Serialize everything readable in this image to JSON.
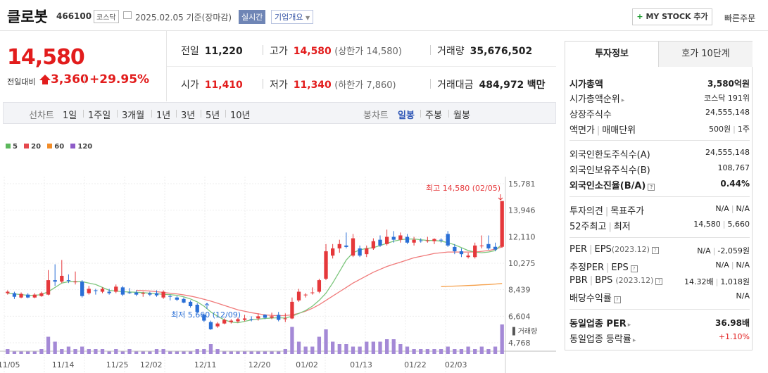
{
  "header": {
    "title": "클로봇",
    "code": "466100",
    "market": "코스닥",
    "date": "2025.02.05",
    "basis": "기준(장마감)",
    "realtime_label": "실시간",
    "company_label": "기업개요",
    "mystock_label": "MY STOCK 추가",
    "quick_order_label": "빠른주문"
  },
  "quote": {
    "price": "14,580",
    "prev_label": "전일대비",
    "change": "3,360",
    "change_pct": "+29.95%",
    "prev_close_label": "전일",
    "prev_close": "11,220",
    "high_label": "고가",
    "high": "14,580",
    "upper_limit_label": "(상한가 14,580)",
    "volume_label": "거래량",
    "volume": "35,676,502",
    "open_label": "시가",
    "open": "11,410",
    "low_label": "저가",
    "low": "11,340",
    "lower_limit_label": "(하한가 7,860)",
    "amount_label": "거래대금",
    "amount": "484,972",
    "amount_unit": "백만"
  },
  "chart_tabs": {
    "line_label": "선차트",
    "line_items": [
      "1일",
      "1주일",
      "3개월",
      "1년",
      "3년",
      "5년",
      "10년"
    ],
    "candle_label": "봉차트",
    "candle_items": [
      "일봉",
      "주봉",
      "월봉"
    ],
    "candle_active": "일봉"
  },
  "chart_data": {
    "type": "candlestick",
    "legend": [
      {
        "name": "5",
        "color": "#5cb85c"
      },
      {
        "name": "20",
        "color": "#e5484d"
      },
      {
        "name": "60",
        "color": "#f28c28"
      },
      {
        "name": "120",
        "color": "#8e5cc8"
      }
    ],
    "y_ticks": [
      15781,
      13946,
      12110,
      10275,
      8439,
      6604,
      4768
    ],
    "y_tick_labels": [
      "15,781",
      "13,946",
      "12,110",
      "10,275",
      "8,439",
      "6,604",
      "4,768"
    ],
    "x_ticks": [
      "11/05",
      "11/14",
      "11/25",
      "12/02",
      "12/11",
      "12/20",
      "01/02",
      "01/13",
      "01/22",
      "02/03"
    ],
    "volume_label": "거래량",
    "high_annotation": "최고 14,580 (02/05)",
    "low_annotation": "최저 5,660 (12/09)",
    "ylim": [
      4768,
      15781
    ],
    "candles": [
      {
        "o": 8200,
        "c": 8300,
        "h": 8400,
        "l": 8100
      },
      {
        "o": 8200,
        "c": 7950,
        "h": 8300,
        "l": 7800
      },
      {
        "o": 7900,
        "c": 8150,
        "h": 8250,
        "l": 7850
      },
      {
        "o": 8100,
        "c": 7900,
        "h": 8200,
        "l": 7850
      },
      {
        "o": 7900,
        "c": 8100,
        "h": 8200,
        "l": 7850
      },
      {
        "o": 8000,
        "c": 8200,
        "h": 8300,
        "l": 7950
      },
      {
        "o": 8100,
        "c": 9100,
        "h": 9800,
        "l": 8050
      },
      {
        "o": 9100,
        "c": 9000,
        "h": 10200,
        "l": 8700
      },
      {
        "o": 9000,
        "c": 9400,
        "h": 10500,
        "l": 8900
      },
      {
        "o": 9100,
        "c": 9050,
        "h": 9500,
        "l": 8900
      },
      {
        "o": 9000,
        "c": 9000,
        "h": 9700,
        "l": 8800
      },
      {
        "o": 9000,
        "c": 8000,
        "h": 9100,
        "l": 7900
      },
      {
        "o": 8200,
        "c": 8500,
        "h": 8700,
        "l": 8100
      },
      {
        "o": 8400,
        "c": 8350,
        "h": 8500,
        "l": 8100
      },
      {
        "o": 8300,
        "c": 8500,
        "h": 8600,
        "l": 8200
      },
      {
        "o": 8300,
        "c": 8200,
        "h": 8500,
        "l": 8100
      },
      {
        "o": 8300,
        "c": 8650,
        "h": 8800,
        "l": 8200
      },
      {
        "o": 8600,
        "c": 8100,
        "h": 8700,
        "l": 8000
      },
      {
        "o": 8250,
        "c": 8200,
        "h": 8550,
        "l": 8150
      },
      {
        "o": 8250,
        "c": 8100,
        "h": 8400,
        "l": 8000
      },
      {
        "o": 8150,
        "c": 8200,
        "h": 8300,
        "l": 7950
      },
      {
        "o": 8200,
        "c": 8100,
        "h": 8300,
        "l": 8000
      },
      {
        "o": 8200,
        "c": 8050,
        "h": 8400,
        "l": 7950
      },
      {
        "o": 7900,
        "c": 8300,
        "h": 8400,
        "l": 7800
      },
      {
        "o": 8000,
        "c": 7950,
        "h": 8100,
        "l": 7700
      },
      {
        "o": 7900,
        "c": 7750,
        "h": 8000,
        "l": 7650
      },
      {
        "o": 7800,
        "c": 7550,
        "h": 7900,
        "l": 7500
      },
      {
        "o": 7600,
        "c": 7300,
        "h": 7700,
        "l": 7200
      },
      {
        "o": 7400,
        "c": 6900,
        "h": 7500,
        "l": 6800
      },
      {
        "o": 6700,
        "c": 6300,
        "h": 6800,
        "l": 6200
      },
      {
        "o": 6200,
        "c": 5700,
        "h": 6300,
        "l": 5660
      },
      {
        "o": 5900,
        "c": 6100,
        "h": 6200,
        "l": 5800
      },
      {
        "o": 6100,
        "c": 6350,
        "h": 6450,
        "l": 6050
      },
      {
        "o": 6200,
        "c": 6300,
        "h": 6400,
        "l": 6100
      },
      {
        "o": 6250,
        "c": 6400,
        "h": 6500,
        "l": 6150
      },
      {
        "o": 6350,
        "c": 6450,
        "h": 6700,
        "l": 6250
      },
      {
        "o": 6400,
        "c": 6350,
        "h": 6600,
        "l": 6250
      },
      {
        "o": 6450,
        "c": 6600,
        "h": 6800,
        "l": 6300
      },
      {
        "o": 6700,
        "c": 6500,
        "h": 6750,
        "l": 6400
      },
      {
        "o": 6500,
        "c": 6600,
        "h": 6850,
        "l": 6400
      },
      {
        "o": 6700,
        "c": 6350,
        "h": 6900,
        "l": 6250
      },
      {
        "o": 6400,
        "c": 6450,
        "h": 6800,
        "l": 6200
      },
      {
        "o": 6450,
        "c": 7600,
        "h": 7900,
        "l": 6400
      },
      {
        "o": 7700,
        "c": 8300,
        "h": 8500,
        "l": 7600
      },
      {
        "o": 8100,
        "c": 8100,
        "h": 8200,
        "l": 7900
      },
      {
        "o": 8200,
        "c": 8250,
        "h": 8600,
        "l": 8100
      },
      {
        "o": 8300,
        "c": 9100,
        "h": 9200,
        "l": 8200
      },
      {
        "o": 9200,
        "c": 11100,
        "h": 11600,
        "l": 9100
      },
      {
        "o": 10800,
        "c": 11300,
        "h": 11600,
        "l": 10600
      },
      {
        "o": 11300,
        "c": 11600,
        "h": 11900,
        "l": 11000
      },
      {
        "o": 11500,
        "c": 11400,
        "h": 12400,
        "l": 11300
      },
      {
        "o": 10800,
        "c": 12000,
        "h": 12300,
        "l": 10700
      },
      {
        "o": 11300,
        "c": 10800,
        "h": 11500,
        "l": 10700
      },
      {
        "o": 10900,
        "c": 11300,
        "h": 11500,
        "l": 10700
      },
      {
        "o": 11300,
        "c": 11800,
        "h": 12000,
        "l": 11200
      },
      {
        "o": 11900,
        "c": 11500,
        "h": 12200,
        "l": 11400
      },
      {
        "o": 11600,
        "c": 12100,
        "h": 12600,
        "l": 11500
      },
      {
        "o": 12100,
        "c": 11900,
        "h": 12500,
        "l": 11700
      },
      {
        "o": 11900,
        "c": 12200,
        "h": 12400,
        "l": 11700
      },
      {
        "o": 12100,
        "c": 11700,
        "h": 12300,
        "l": 11600
      },
      {
        "o": 11700,
        "c": 11900,
        "h": 12100,
        "l": 11500
      },
      {
        "o": 11850,
        "c": 11800,
        "h": 12000,
        "l": 11700
      },
      {
        "o": 11800,
        "c": 11850,
        "h": 12100,
        "l": 11700
      },
      {
        "o": 11800,
        "c": 11950,
        "h": 12000,
        "l": 11600
      },
      {
        "o": 11900,
        "c": 11850,
        "h": 12000,
        "l": 11700
      },
      {
        "o": 12300,
        "c": 11500,
        "h": 12500,
        "l": 11400
      },
      {
        "o": 11400,
        "c": 11100,
        "h": 11600,
        "l": 10900
      },
      {
        "o": 11100,
        "c": 10900,
        "h": 11300,
        "l": 10700
      },
      {
        "o": 10700,
        "c": 10800,
        "h": 11000,
        "l": 10600
      },
      {
        "o": 10700,
        "c": 11500,
        "h": 11700,
        "l": 10600
      },
      {
        "o": 11500,
        "c": 11500,
        "h": 12200,
        "l": 11300
      },
      {
        "o": 11600,
        "c": 11300,
        "h": 12200,
        "l": 11200
      },
      {
        "o": 11410,
        "c": 11220,
        "h": 11700,
        "l": 11100
      },
      {
        "o": 11410,
        "c": 14580,
        "h": 14580,
        "l": 11340
      }
    ],
    "ma5": [
      8200,
      8150,
      8100,
      8050,
      8050,
      8100,
      8300,
      8600,
      8900,
      9000,
      9000,
      9000,
      8900,
      8800,
      8600,
      8400,
      8350,
      8300,
      8280,
      8260,
      8240,
      8200,
      8160,
      8120,
      8100,
      8050,
      7950,
      7800,
      7600,
      7300,
      6900,
      6600,
      6350,
      6200,
      6150,
      6250,
      6350,
      6400,
      6450,
      6480,
      6500,
      6480,
      6600,
      6800,
      7000,
      7300,
      7700,
      8200,
      8900,
      9700,
      10500,
      11000,
      11200,
      11300,
      11350,
      11500,
      11650,
      11800,
      11900,
      11950,
      11950,
      11900,
      11850,
      11850,
      11800,
      11700,
      11550,
      11350,
      11150,
      11050,
      11000,
      11050,
      11150,
      11600
    ],
    "ma20": [
      null,
      null,
      null,
      null,
      null,
      null,
      null,
      null,
      null,
      null,
      null,
      null,
      null,
      null,
      null,
      null,
      null,
      null,
      null,
      8400,
      8380,
      8350,
      8300,
      8250,
      8200,
      8150,
      8080,
      8000,
      7900,
      7780,
      7650,
      7500,
      7350,
      7200,
      7050,
      6950,
      6850,
      6770,
      6700,
      6660,
      6640,
      6650,
      6700,
      6800,
      6950,
      7150,
      7400,
      7700,
      8000,
      8300,
      8600,
      8900,
      9150,
      9400,
      9650,
      9850,
      10050,
      10200,
      10350,
      10500,
      10650,
      10750,
      10850,
      10950,
      11000,
      11050,
      11050,
      11050,
      11050,
      11050,
      11100,
      11150,
      11250,
      11400
    ],
    "ma60": [
      null,
      null,
      null,
      null,
      null,
      null,
      null,
      null,
      null,
      null,
      null,
      null,
      null,
      null,
      null,
      null,
      null,
      null,
      null,
      null,
      null,
      null,
      null,
      null,
      null,
      null,
      null,
      null,
      null,
      null,
      null,
      null,
      null,
      null,
      null,
      null,
      null,
      null,
      null,
      null,
      null,
      null,
      null,
      null,
      null,
      null,
      null,
      null,
      null,
      null,
      null,
      null,
      null,
      null,
      null,
      null,
      null,
      null,
      null,
      null,
      null,
      null,
      null,
      null,
      8650,
      8670,
      8690,
      8710,
      8730,
      8750,
      8780,
      8800,
      8830,
      8870
    ],
    "volumes": [
      2,
      1,
      1,
      1,
      1,
      2,
      7,
      5,
      2,
      3,
      2,
      3,
      2,
      2,
      2,
      1,
      2,
      1,
      2,
      1,
      1,
      1,
      2,
      2,
      1,
      1,
      1,
      1,
      2,
      2,
      4,
      2,
      1,
      1,
      1,
      1,
      1,
      1,
      1,
      1,
      1,
      2,
      11,
      5,
      3,
      3,
      7,
      10,
      5,
      4,
      4,
      3,
      3,
      5,
      5,
      5,
      6,
      6,
      4,
      3,
      2,
      2,
      2,
      2,
      2,
      3,
      2,
      2,
      3,
      2,
      3,
      2,
      3,
      12
    ],
    "volume_max": 12
  },
  "invest_tabs": {
    "active": "투자정보",
    "inactive": "호가 10단계"
  },
  "invest": {
    "market_cap_label": "시가총액",
    "market_cap": "3,580억원",
    "rank_label": "시가총액순위",
    "rank": "코스닥 191위",
    "shares_label": "상장주식수",
    "shares": "24,555,148",
    "par_label": "액면가",
    "par_sep": "매매단위",
    "par_value": "500원",
    "unit_value": "1주",
    "foreign_limit_label": "외국인한도주식수(A)",
    "foreign_limit": "24,555,148",
    "foreign_hold_label": "외국인보유주식수(B)",
    "foreign_hold": "108,767",
    "foreign_ratio_label": "외국인소진율(B/A)",
    "foreign_ratio": "0.44%",
    "opinion_label": "투자의견",
    "target_label": "목표주가",
    "opinion": "N/A",
    "target": "N/A",
    "w52_label": "52주최고",
    "w52_low_label": "최저",
    "w52_high": "14,580",
    "w52_low": "5,660",
    "per_label": "PER",
    "eps_label": "EPS",
    "eps_year": "(2023.12)",
    "per": "N/A",
    "eps": "-2,059원",
    "est_per_label": "추정PER",
    "est_eps_label": "EPS",
    "est_per": "N/A",
    "est_eps": "N/A",
    "pbr_label": "PBR",
    "bps_label": "BPS",
    "bps_year": "(2023.12)",
    "pbr": "14.32배",
    "bps": "1,018원",
    "dividend_label": "배당수익률",
    "dividend": "N/A",
    "sector_per_label": "동일업종 PER",
    "sector_per": "36.98배",
    "sector_change_label": "동일업종 등락률",
    "sector_change": "+1.10%"
  }
}
